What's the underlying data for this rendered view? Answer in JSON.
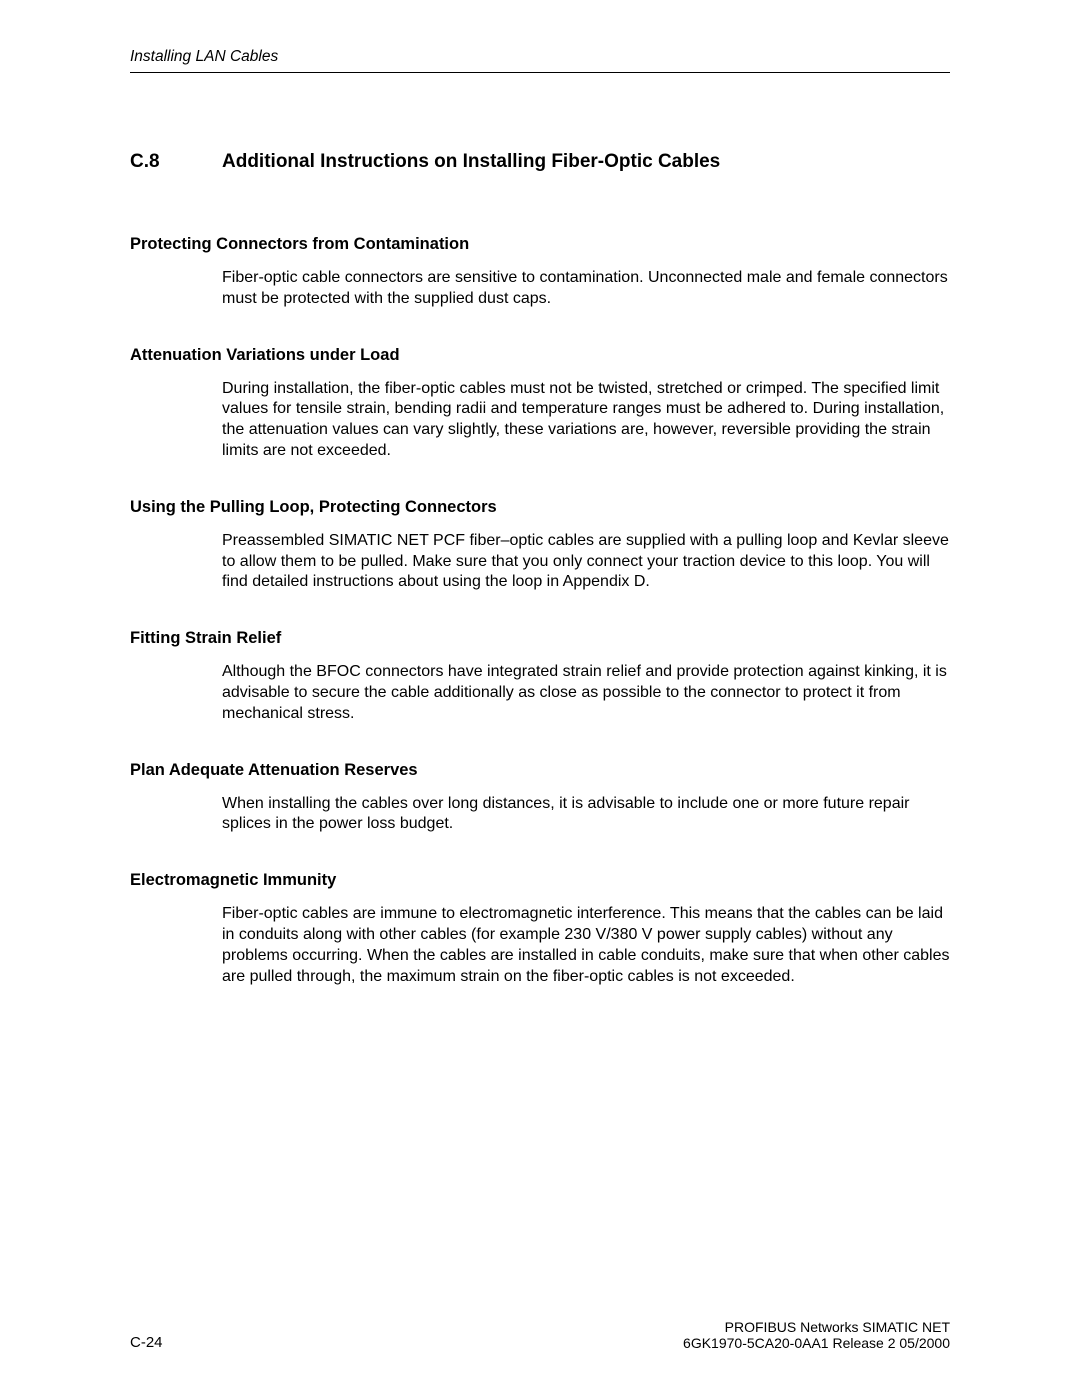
{
  "header": {
    "running_title": "Installing LAN Cables"
  },
  "section": {
    "number": "C.8",
    "title": "Additional Instructions on Installing Fiber-Optic Cables"
  },
  "blocks": {
    "b1": {
      "heading": "Protecting Connectors from Contamination",
      "body": "Fiber-optic cable connectors are sensitive to contamination. Unconnected male and female connectors must be protected with the supplied dust caps."
    },
    "b2": {
      "heading": "Attenuation Variations under Load",
      "body": "During installation, the fiber-optic cables must not be twisted, stretched or crimped. The specified limit values for tensile strain, bending radii and temperature ranges must be adhered to. During installation, the attenuation values can vary slightly, these variations are, however, reversible providing the strain limits are not exceeded."
    },
    "b3": {
      "heading": "Using the Pulling Loop, Protecting Connectors",
      "body": "Preassembled  SIMATIC NET PCF fiber–optic cables are supplied with a pulling loop and Kevlar sleeve to allow them to be pulled. Make sure that you only connect your traction device to this loop. You will find detailed instructions about using the loop in Appendix D."
    },
    "b4": {
      "heading": "Fitting Strain Relief",
      "body": "Although the BFOC connectors have integrated strain relief and provide protection against kinking, it is advisable to secure the cable additionally as close as possible to the connector to protect it from mechanical stress."
    },
    "b5": {
      "heading": "Plan Adequate Attenuation Reserves",
      "body": "When installing the cables over long distances, it is advisable to include one or more future repair splices in the power loss budget."
    },
    "b6": {
      "heading": "Electromagnetic Immunity",
      "body": "Fiber-optic cables are immune to electromagnetic interference. This means that the cables can be laid in conduits along with other cables (for example  230 V/380 V power supply cables) without any problems occurring. When the cables are installed in cable conduits, make sure that when other cables are pulled through, the maximum strain on the fiber-optic cables is not exceeded."
    }
  },
  "footer": {
    "page_number": "C-24",
    "line1": "PROFIBUS Networks SIMATIC NET",
    "line2": "6GK1970-5CA20-0AA1 Release 2 05/2000"
  }
}
